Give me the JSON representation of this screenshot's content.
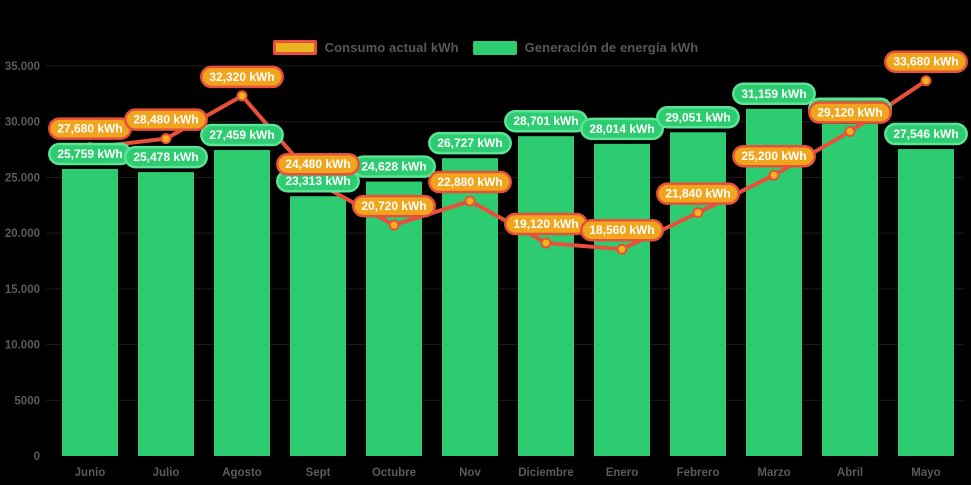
{
  "chart_data": {
    "type": "bar",
    "title": "",
    "categories": [
      "Junio",
      "Julio",
      "Agosto",
      "Sept",
      "Octubre",
      "Nov",
      "Diciembre",
      "Enero",
      "Febrero",
      "Marzo",
      "Abril",
      "Mayo"
    ],
    "series": [
      {
        "name": "Consumo actual kWh",
        "type": "line",
        "values": [
          27680,
          28480,
          32320,
          24480,
          20720,
          22880,
          19120,
          18560,
          21840,
          25200,
          29120,
          33680
        ]
      },
      {
        "name": "Generación de energía kWh",
        "type": "bar",
        "values": [
          25759,
          25478,
          27459,
          23313,
          24628,
          26727,
          28701,
          28014,
          29051,
          31159,
          29814,
          27546
        ]
      }
    ],
    "value_label_suffix": " kWh",
    "xlabel": "",
    "ylabel": "",
    "ylim": [
      0,
      35000
    ],
    "yticks": [
      {
        "value": 35000,
        "label": "35.000"
      },
      {
        "value": 30000,
        "label": "30.000"
      },
      {
        "value": 25000,
        "label": "25.000"
      },
      {
        "value": 20000,
        "label": "20.000"
      },
      {
        "value": 15000,
        "label": "15.000"
      },
      {
        "value": 10000,
        "label": "10.000"
      },
      {
        "value": 5000,
        "label": "5000"
      },
      {
        "value": 0,
        "label": "0"
      }
    ],
    "grid": true,
    "legend_position": "top"
  },
  "colors": {
    "background": "#000000",
    "bar": "#2ecc71",
    "bar_pill_border": "#5be495",
    "line": "#e8503c",
    "marker_fill": "#f3b41b",
    "consumo_pill_bg": "#f0a51c",
    "consumo_pill_border": "#e8503c",
    "pill_text": "#ffffff",
    "axis_text": "#5a5a5c",
    "gridline": "#1d1d1d"
  }
}
